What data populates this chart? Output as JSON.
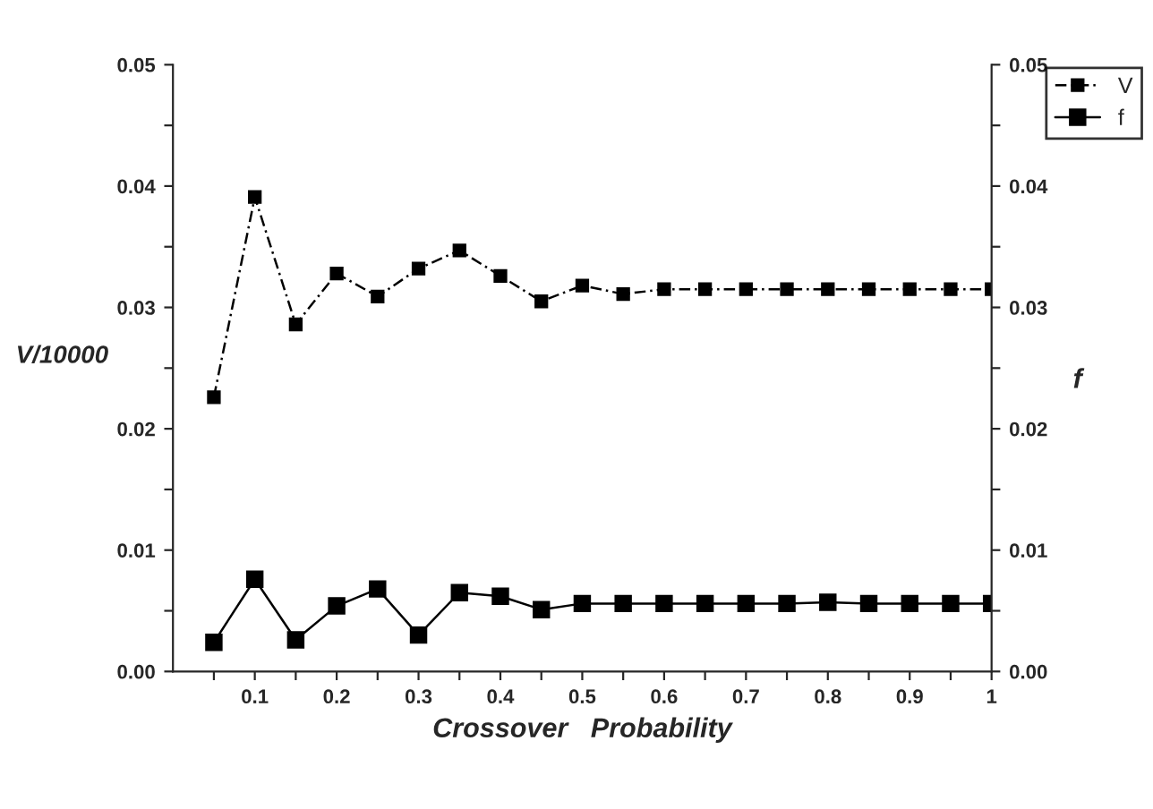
{
  "chart_data": {
    "type": "line",
    "xlabel": "Crossover   Probability",
    "ylabel": "V/10000",
    "y2label": "f",
    "x": [
      0.05,
      0.1,
      0.15,
      0.2,
      0.25,
      0.3,
      0.35,
      0.4,
      0.45,
      0.5,
      0.55,
      0.6,
      0.65,
      0.7,
      0.75,
      0.8,
      0.85,
      0.9,
      0.95,
      1.0
    ],
    "series": [
      {
        "name": "V",
        "color": "#000000",
        "line_style": "dashed",
        "values": [
          0.0226,
          0.0391,
          0.0286,
          0.0328,
          0.0309,
          0.0332,
          0.0347,
          0.0326,
          0.0305,
          0.0318,
          0.0311,
          0.0315,
          0.0315,
          0.0315,
          0.0315,
          0.0315,
          0.0315,
          0.0315,
          0.0315,
          0.0315
        ]
      },
      {
        "name": "f",
        "color": "#000000",
        "line_style": "solid",
        "axis": "y2",
        "values": [
          0.0024,
          0.0076,
          0.0026,
          0.0054,
          0.0068,
          0.003,
          0.0065,
          0.0062,
          0.0051,
          0.0056,
          0.0056,
          0.0056,
          0.0056,
          0.0056,
          0.0056,
          0.0057,
          0.0056,
          0.0056,
          0.0056,
          0.0056
        ]
      }
    ],
    "marker": "square",
    "legend": "top right",
    "grid": false,
    "xlim": [
      0,
      1
    ],
    "xticks": [
      {
        "value": 0.05,
        "label": null
      },
      {
        "value": 0.1,
        "label": "0.1"
      },
      {
        "value": 0.15,
        "label": null
      },
      {
        "value": 0.2,
        "label": "0.2"
      },
      {
        "value": 0.25,
        "label": null
      },
      {
        "value": 0.3,
        "label": "0.3"
      },
      {
        "value": 0.35,
        "label": null
      },
      {
        "value": 0.4,
        "label": "0.4"
      },
      {
        "value": 0.45,
        "label": null
      },
      {
        "value": 0.5,
        "label": "0.5"
      },
      {
        "value": 0.55,
        "label": null
      },
      {
        "value": 0.6,
        "label": "0.6"
      },
      {
        "value": 0.65,
        "label": null
      },
      {
        "value": 0.7,
        "label": "0.7"
      },
      {
        "value": 0.75,
        "label": null
      },
      {
        "value": 0.8,
        "label": "0.8"
      },
      {
        "value": 0.85,
        "label": null
      },
      {
        "value": 0.9,
        "label": "0.9"
      },
      {
        "value": 0.95,
        "label": null
      },
      {
        "value": 1,
        "label": "1"
      }
    ],
    "ylim": [
      0,
      0.05
    ],
    "yticks": [
      {
        "value": 0,
        "label": "0.00"
      },
      {
        "value": 0.005,
        "label": null
      },
      {
        "value": 0.01,
        "label": "0.01"
      },
      {
        "value": 0.015,
        "label": null
      },
      {
        "value": 0.02,
        "label": "0.02"
      },
      {
        "value": 0.025,
        "label": null
      },
      {
        "value": 0.03,
        "label": "0.03"
      },
      {
        "value": 0.035,
        "label": null
      },
      {
        "value": 0.04,
        "label": "0.04"
      },
      {
        "value": 0.045,
        "label": null
      },
      {
        "value": 0.05,
        "label": "0.05"
      }
    ],
    "y2lim": [
      0,
      0.05
    ],
    "y2ticks": [
      {
        "value": 0,
        "label": "0.00"
      },
      {
        "value": 0.005,
        "label": null
      },
      {
        "value": 0.01,
        "label": "0.01"
      },
      {
        "value": 0.015,
        "label": null
      },
      {
        "value": 0.02,
        "label": "0.02"
      },
      {
        "value": 0.025,
        "label": null
      },
      {
        "value": 0.03,
        "label": "0.03"
      },
      {
        "value": 0.035,
        "label": null
      },
      {
        "value": 0.04,
        "label": "0.04"
      },
      {
        "value": 0.045,
        "label": null
      },
      {
        "value": 0.05,
        "label": "0.05"
      }
    ]
  }
}
